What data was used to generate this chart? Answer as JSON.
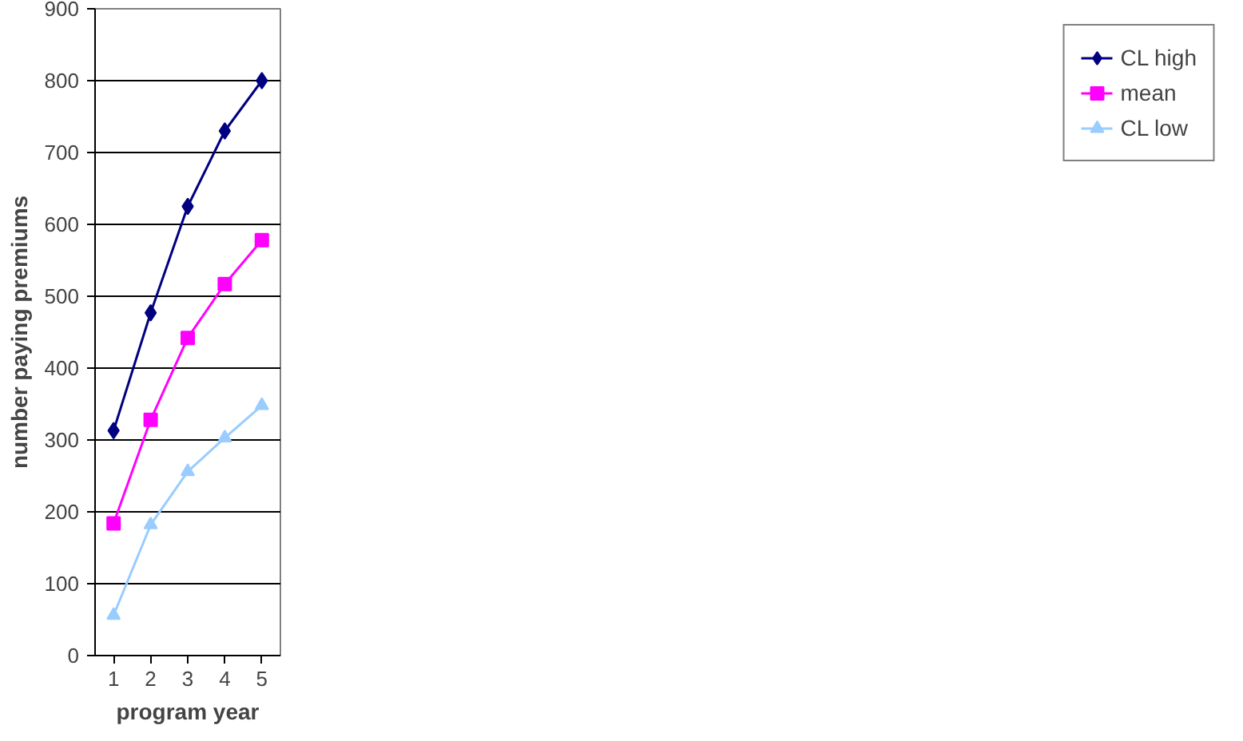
{
  "chart_data": {
    "type": "line",
    "xlabel": "program year",
    "ylabel": "number paying premiums",
    "categories": [
      "1",
      "2",
      "3",
      "4",
      "5"
    ],
    "ylim": [
      0,
      900
    ],
    "yticks": [
      0,
      100,
      200,
      300,
      400,
      500,
      600,
      700,
      800,
      900
    ],
    "grid": "y",
    "legend": "right",
    "series": [
      {
        "name": "CL high",
        "color": "#000080",
        "marker": "diamond",
        "values": [
          313,
          477,
          625,
          730,
          800
        ]
      },
      {
        "name": "mean",
        "color": "#ff00ff",
        "marker": "square",
        "values": [
          184,
          328,
          442,
          517,
          578
        ]
      },
      {
        "name": "CL low",
        "color": "#99ccff",
        "marker": "triangle",
        "values": [
          56,
          182,
          256,
          303,
          348
        ]
      }
    ]
  }
}
